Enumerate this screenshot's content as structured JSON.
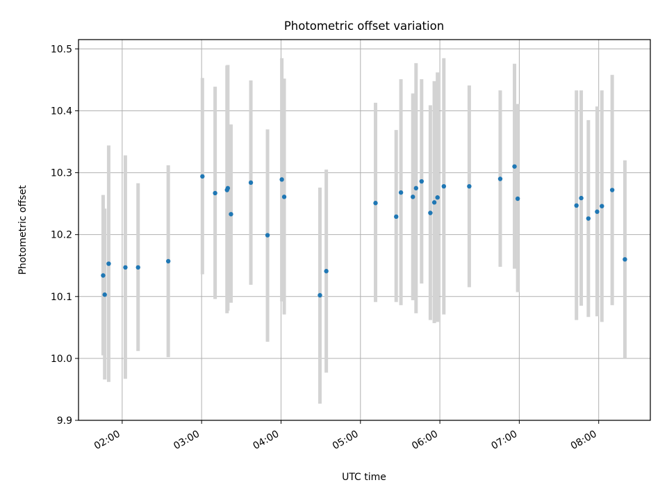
{
  "chart_data": {
    "type": "scatter",
    "title": "Photometric offset variation",
    "xlabel": "UTC time",
    "ylabel": "Photometric offset",
    "x_unit": "UTC hours",
    "xlim": [
      1.45,
      8.65
    ],
    "ylim": [
      9.9,
      10.515
    ],
    "x_ticks": [
      2,
      3,
      4,
      5,
      6,
      7,
      8
    ],
    "x_tick_labels": [
      "02:00",
      "03:00",
      "04:00",
      "05:00",
      "06:00",
      "07:00",
      "08:00"
    ],
    "y_ticks": [
      9.9,
      10.0,
      10.1,
      10.2,
      10.3,
      10.4,
      10.5
    ],
    "y_tick_labels": [
      "9.9",
      "10.0",
      "10.1",
      "10.2",
      "10.3",
      "10.4",
      "10.5"
    ],
    "grid": true,
    "series": [
      {
        "marker_color": "#1f77b4",
        "errorbar_color": "#d3d3d3",
        "points": [
          {
            "time": "01:46",
            "x": 1.76,
            "y": 10.134,
            "ylow": 10.005,
            "yhigh": 10.264
          },
          {
            "time": "01:47",
            "x": 1.78,
            "y": 10.103,
            "ylow": 9.966,
            "yhigh": 10.242
          },
          {
            "time": "01:50",
            "x": 1.83,
            "y": 10.153,
            "ylow": 9.962,
            "yhigh": 10.344
          },
          {
            "time": "02:03",
            "x": 2.04,
            "y": 10.147,
            "ylow": 9.967,
            "yhigh": 10.328
          },
          {
            "time": "02:12",
            "x": 2.2,
            "y": 10.147,
            "ylow": 10.012,
            "yhigh": 10.283
          },
          {
            "time": "02:35",
            "x": 2.58,
            "y": 10.157,
            "ylow": 10.002,
            "yhigh": 10.312
          },
          {
            "time": "03:01",
            "x": 3.01,
            "y": 10.294,
            "ylow": 10.136,
            "yhigh": 10.453
          },
          {
            "time": "03:10",
            "x": 3.17,
            "y": 10.267,
            "ylow": 10.096,
            "yhigh": 10.439
          },
          {
            "time": "03:19",
            "x": 3.32,
            "y": 10.272,
            "ylow": 10.073,
            "yhigh": 10.473
          },
          {
            "time": "03:20",
            "x": 3.33,
            "y": 10.275,
            "ylow": 10.077,
            "yhigh": 10.474
          },
          {
            "time": "03:22",
            "x": 3.37,
            "y": 10.233,
            "ylow": 10.09,
            "yhigh": 10.378
          },
          {
            "time": "03:37",
            "x": 3.62,
            "y": 10.284,
            "ylow": 10.119,
            "yhigh": 10.449
          },
          {
            "time": "03:50",
            "x": 3.83,
            "y": 10.199,
            "ylow": 10.027,
            "yhigh": 10.37
          },
          {
            "time": "04:00",
            "x": 4.01,
            "y": 10.289,
            "ylow": 10.092,
            "yhigh": 10.485
          },
          {
            "time": "04:02",
            "x": 4.04,
            "y": 10.261,
            "ylow": 10.071,
            "yhigh": 10.452
          },
          {
            "time": "04:29",
            "x": 4.49,
            "y": 10.102,
            "ylow": 9.927,
            "yhigh": 10.276
          },
          {
            "time": "04:34",
            "x": 4.57,
            "y": 10.141,
            "ylow": 9.977,
            "yhigh": 10.305
          },
          {
            "time": "05:11",
            "x": 5.19,
            "y": 10.251,
            "ylow": 10.091,
            "yhigh": 10.413
          },
          {
            "time": "05:27",
            "x": 5.45,
            "y": 10.229,
            "ylow": 10.091,
            "yhigh": 10.369
          },
          {
            "time": "05:30",
            "x": 5.51,
            "y": 10.268,
            "ylow": 10.086,
            "yhigh": 10.451
          },
          {
            "time": "05:39",
            "x": 5.66,
            "y": 10.261,
            "ylow": 10.094,
            "yhigh": 10.428
          },
          {
            "time": "05:42",
            "x": 5.7,
            "y": 10.275,
            "ylow": 10.073,
            "yhigh": 10.477
          },
          {
            "time": "05:46",
            "x": 5.77,
            "y": 10.286,
            "ylow": 10.121,
            "yhigh": 10.451
          },
          {
            "time": "05:53",
            "x": 5.88,
            "y": 10.235,
            "ylow": 10.062,
            "yhigh": 10.409
          },
          {
            "time": "05:56",
            "x": 5.93,
            "y": 10.252,
            "ylow": 10.057,
            "yhigh": 10.448
          },
          {
            "time": "05:58",
            "x": 5.97,
            "y": 10.26,
            "ylow": 10.059,
            "yhigh": 10.462
          },
          {
            "time": "06:03",
            "x": 6.05,
            "y": 10.278,
            "ylow": 10.071,
            "yhigh": 10.485
          },
          {
            "time": "06:22",
            "x": 6.37,
            "y": 10.278,
            "ylow": 10.115,
            "yhigh": 10.441
          },
          {
            "time": "06:46",
            "x": 6.76,
            "y": 10.29,
            "ylow": 10.148,
            "yhigh": 10.433
          },
          {
            "time": "06:56",
            "x": 6.94,
            "y": 10.31,
            "ylow": 10.145,
            "yhigh": 10.476
          },
          {
            "time": "06:59",
            "x": 6.98,
            "y": 10.258,
            "ylow": 10.107,
            "yhigh": 10.411
          },
          {
            "time": "07:43",
            "x": 7.72,
            "y": 10.247,
            "ylow": 10.062,
            "yhigh": 10.433
          },
          {
            "time": "07:47",
            "x": 7.78,
            "y": 10.259,
            "ylow": 10.085,
            "yhigh": 10.433
          },
          {
            "time": "07:53",
            "x": 7.87,
            "y": 10.226,
            "ylow": 10.067,
            "yhigh": 10.385
          },
          {
            "time": "07:59",
            "x": 7.98,
            "y": 10.237,
            "ylow": 10.068,
            "yhigh": 10.407
          },
          {
            "time": "08:02",
            "x": 8.04,
            "y": 10.246,
            "ylow": 10.059,
            "yhigh": 10.433
          },
          {
            "time": "08:10",
            "x": 8.17,
            "y": 10.272,
            "ylow": 10.086,
            "yhigh": 10.458
          },
          {
            "time": "08:19",
            "x": 8.33,
            "y": 10.16,
            "ylow": 10.0,
            "yhigh": 10.32
          }
        ]
      }
    ]
  }
}
